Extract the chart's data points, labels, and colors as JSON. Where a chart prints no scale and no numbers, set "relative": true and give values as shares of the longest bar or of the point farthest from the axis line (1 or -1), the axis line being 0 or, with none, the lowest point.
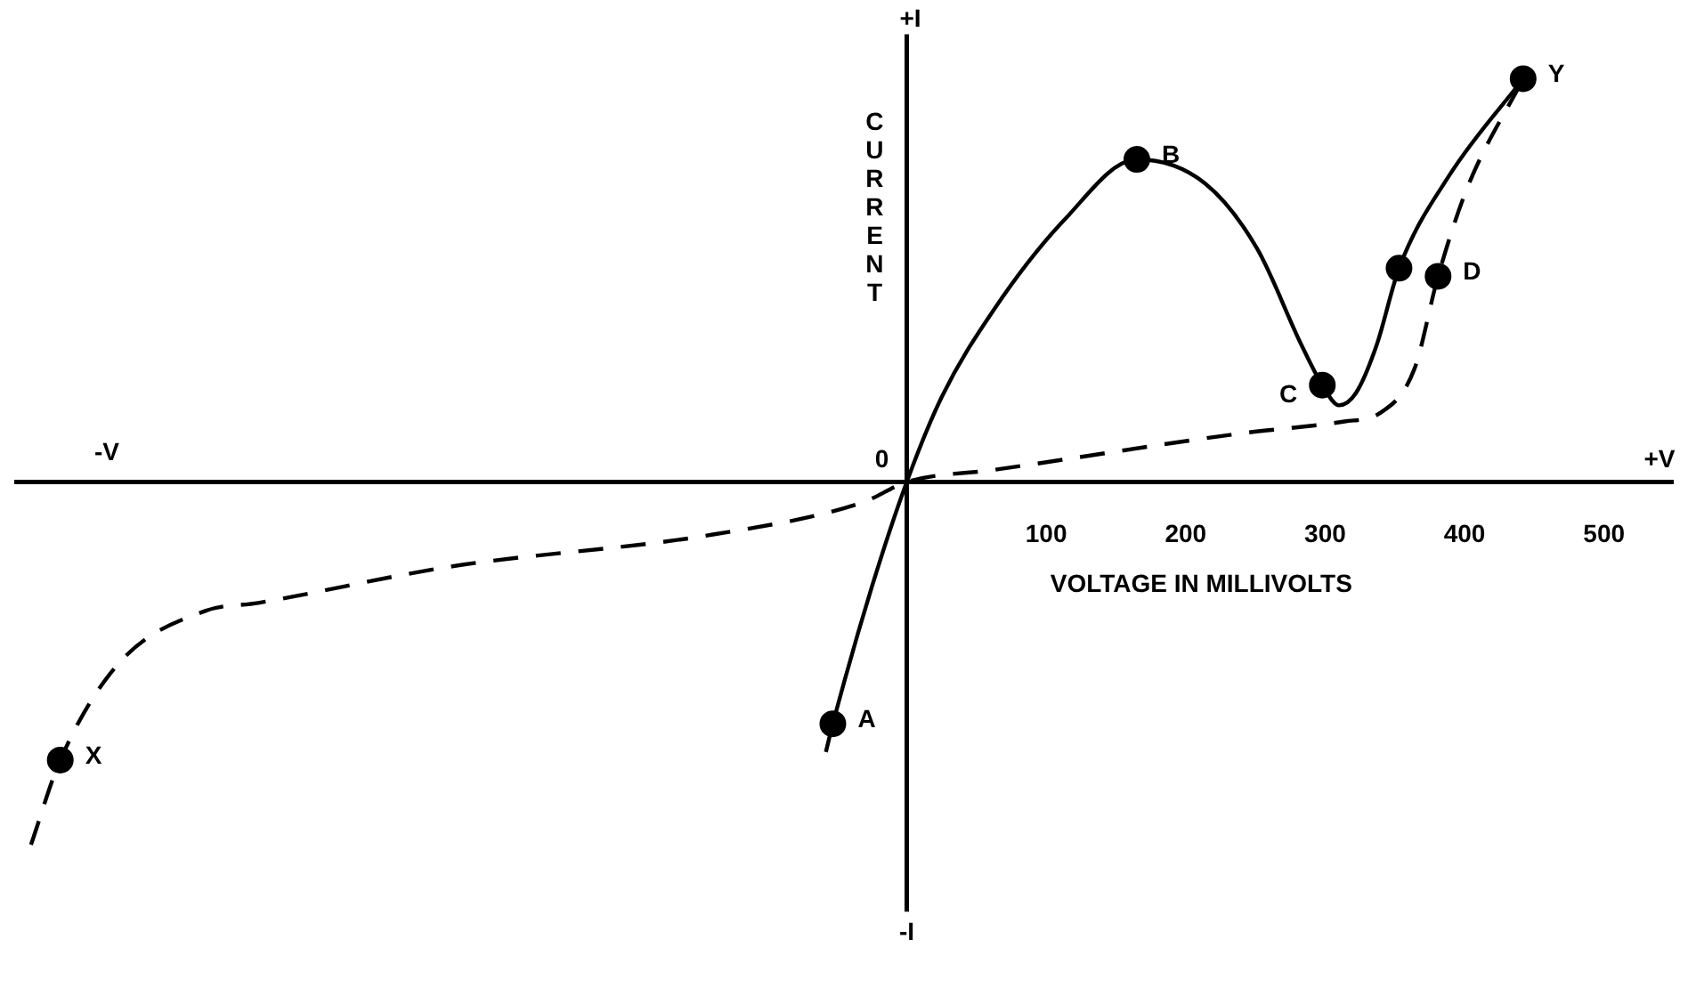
{
  "chart_data": {
    "type": "line",
    "relative": true,
    "xlabel": "VOLTAGE IN MILLIVOLTS",
    "ylabel": "CURRENT",
    "xlim": [
      -640,
      550
    ],
    "xticks": [
      100,
      200,
      300,
      400,
      500
    ],
    "tick_labels": "x",
    "legend": false,
    "annotations": [
      "+I",
      "-I",
      "-V",
      "+V",
      "0",
      {
        "text": "A",
        "x": -53,
        "y": -0.6
      },
      {
        "text": "B",
        "x": 165,
        "y": 0.8
      },
      {
        "text": "C",
        "x": 298,
        "y": 0.24
      },
      {
        "text": "D",
        "x": 381,
        "y": 0.51
      },
      {
        "text": "X",
        "x": -607,
        "y": -0.69
      },
      {
        "text": "Y",
        "x": 442,
        "y": 1.0
      }
    ],
    "series": [
      {
        "type": "line",
        "color": "#000000",
        "line_style": "solid",
        "marker": "none",
        "x": [
          -58,
          -53,
          -25,
          0,
          25,
          63,
          113,
          165,
          214,
          251,
          283,
          298,
          310,
          322,
          337,
          353,
          389,
          442
        ],
        "values": [
          -0.67,
          -0.6,
          -0.26,
          0,
          0.21,
          0.43,
          0.65,
          0.8,
          0.74,
          0.58,
          0.34,
          0.24,
          0.19,
          0.22,
          0.34,
          0.53,
          0.76,
          1.0
        ]
      },
      {
        "type": "line",
        "color": "#000000",
        "line_style": "dashed",
        "marker": "none",
        "x": [
          -628,
          -607,
          -565,
          -503,
          -465,
          -327,
          -138,
          -31,
          0,
          63,
          239,
          314,
          339,
          364,
          381,
          402,
          442
        ],
        "values": [
          -0.9,
          -0.69,
          -0.45,
          -0.32,
          -0.3,
          -0.21,
          -0.13,
          -0.05,
          0,
          0.03,
          0.12,
          0.15,
          0.17,
          0.28,
          0.51,
          0.73,
          1.0
        ]
      },
      {
        "type": "scatter",
        "color": "#000000",
        "marker": "circle",
        "x": [
          -53,
          165,
          298,
          353,
          381,
          -607,
          442
        ],
        "values": [
          -0.6,
          0.8,
          0.24,
          0.53,
          0.51,
          -0.69,
          1.0
        ]
      }
    ]
  }
}
